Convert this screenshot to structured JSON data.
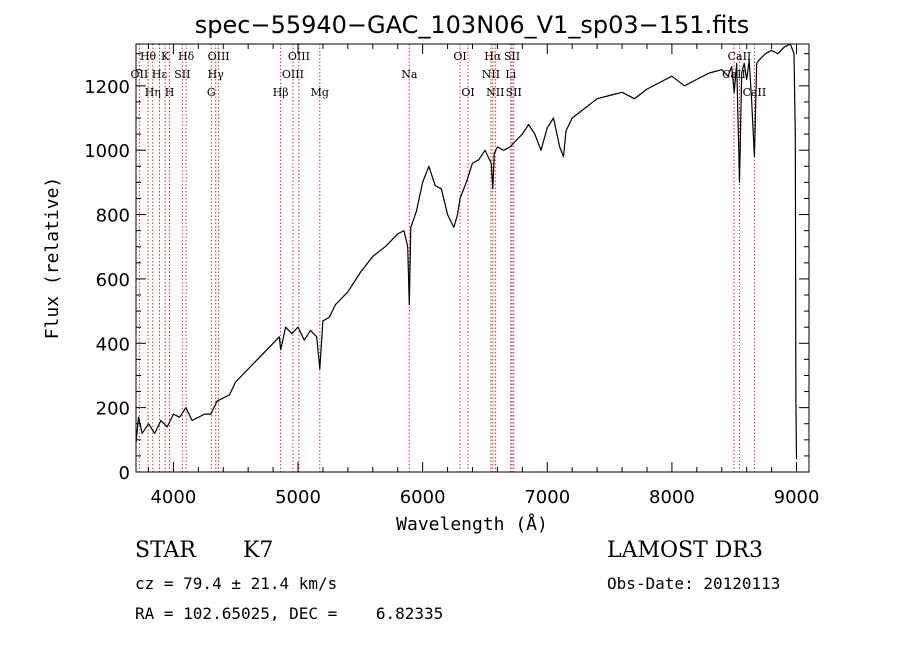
{
  "chart_data": {
    "type": "line",
    "title": "spec−55940−GAC_103N06_V1_sp03−151.fits",
    "xlabel": "Wavelength (Å)",
    "ylabel": "Flux (relative)",
    "xlim": [
      3700,
      9100
    ],
    "ylim": [
      0,
      1330
    ],
    "xticks": [
      4000,
      5000,
      6000,
      7000,
      8000,
      9000
    ],
    "yticks": [
      0,
      200,
      400,
      600,
      800,
      1000,
      1200
    ],
    "grid": false,
    "series": [
      {
        "name": "spectrum",
        "x": [
          3700,
          3720,
          3750,
          3800,
          3850,
          3900,
          3950,
          4000,
          4050,
          4100,
          4150,
          4200,
          4250,
          4300,
          4350,
          4400,
          4450,
          4500,
          4600,
          4700,
          4800,
          4850,
          4861,
          4900,
          4950,
          5000,
          5050,
          5100,
          5150,
          5175,
          5200,
          5250,
          5300,
          5400,
          5500,
          5600,
          5700,
          5800,
          5850,
          5880,
          5893,
          5905,
          5950,
          6000,
          6050,
          6100,
          6150,
          6200,
          6250,
          6280,
          6300,
          6350,
          6400,
          6450,
          6500,
          6550,
          6563,
          6575,
          6600,
          6650,
          6700,
          6750,
          6800,
          6850,
          6900,
          6950,
          7000,
          7050,
          7100,
          7130,
          7150,
          7200,
          7300,
          7400,
          7500,
          7600,
          7700,
          7800,
          7900,
          8000,
          8100,
          8200,
          8300,
          8400,
          8450,
          8480,
          8500,
          8520,
          8542,
          8560,
          8580,
          8600,
          8620,
          8640,
          8662,
          8680,
          8700,
          8750,
          8800,
          8850,
          8900,
          8950,
          8980,
          8990,
          8995,
          9000
        ],
        "y": [
          90,
          170,
          120,
          150,
          120,
          160,
          140,
          180,
          170,
          200,
          160,
          170,
          180,
          180,
          220,
          230,
          240,
          280,
          320,
          360,
          400,
          420,
          380,
          450,
          430,
          450,
          410,
          440,
          420,
          320,
          470,
          480,
          520,
          560,
          620,
          670,
          700,
          740,
          750,
          700,
          520,
          760,
          810,
          900,
          950,
          890,
          880,
          800,
          760,
          800,
          850,
          900,
          960,
          970,
          1000,
          960,
          880,
          990,
          1010,
          1000,
          1010,
          1030,
          1050,
          1080,
          1050,
          1000,
          1070,
          1100,
          1010,
          980,
          1060,
          1100,
          1130,
          1160,
          1170,
          1180,
          1160,
          1190,
          1210,
          1230,
          1200,
          1220,
          1240,
          1250,
          1230,
          1260,
          1180,
          1270,
          900,
          1240,
          1270,
          1220,
          1280,
          1150,
          980,
          1270,
          1280,
          1300,
          1310,
          1300,
          1320,
          1330,
          1300,
          1050,
          220,
          40
        ]
      }
    ],
    "line_labels": [
      {
        "label": "Hθ",
        "x": 3797,
        "row": 0
      },
      {
        "label": "OII",
        "x": 3727,
        "row": 1
      },
      {
        "label": "Hη",
        "x": 3835,
        "row": 2
      },
      {
        "label": "Hε",
        "x": 3889,
        "row": 1
      },
      {
        "label": "K",
        "x": 3934,
        "row": 0
      },
      {
        "label": "H",
        "x": 3969,
        "row": 2
      },
      {
        "label": "SII",
        "x": 4072,
        "row": 1
      },
      {
        "label": "Hδ",
        "x": 4102,
        "row": 0
      },
      {
        "label": "G",
        "x": 4304,
        "row": 2
      },
      {
        "label": "Hγ",
        "x": 4340,
        "row": 1
      },
      {
        "label": "OIII",
        "x": 4363,
        "row": 0
      },
      {
        "label": "Hβ",
        "x": 4861,
        "row": 2
      },
      {
        "label": "OIII",
        "x": 4959,
        "row": 1
      },
      {
        "label": "OIII",
        "x": 5007,
        "row": 0
      },
      {
        "label": "Mg",
        "x": 5175,
        "row": 2
      },
      {
        "label": "Na",
        "x": 5893,
        "row": 1
      },
      {
        "label": "OI",
        "x": 6300,
        "row": 0
      },
      {
        "label": "OI",
        "x": 6364,
        "row": 2
      },
      {
        "label": "NII",
        "x": 6548,
        "row": 1
      },
      {
        "label": "Hα",
        "x": 6563,
        "row": 0
      },
      {
        "label": "NII",
        "x": 6583,
        "row": 2
      },
      {
        "label": "Li",
        "x": 6707,
        "row": 1
      },
      {
        "label": "SII",
        "x": 6717,
        "row": 0
      },
      {
        "label": "SII",
        "x": 6731,
        "row": 2
      },
      {
        "label": "CaII",
        "x": 8498,
        "row": 1
      },
      {
        "label": "CaII",
        "x": 8542,
        "row": 0
      },
      {
        "label": "CaII",
        "x": 8662,
        "row": 2
      }
    ]
  },
  "info": {
    "class": "STAR",
    "subclass": "K7",
    "survey": "LAMOST DR3",
    "cz": "cz = 79.4 ± 21.4 km/s",
    "obs_date": "Obs-Date: 20120113",
    "coords": "RA = 102.65025, DEC =    6.82335"
  }
}
